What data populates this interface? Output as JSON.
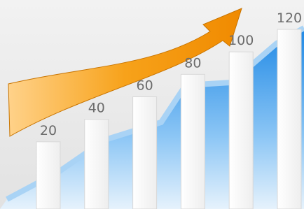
{
  "chart_data": {
    "type": "bar",
    "categories": [
      null,
      null,
      null,
      null,
      null,
      null
    ],
    "values": [
      20,
      40,
      60,
      80,
      100,
      120
    ],
    "color": "#ffffff"
  }
}
